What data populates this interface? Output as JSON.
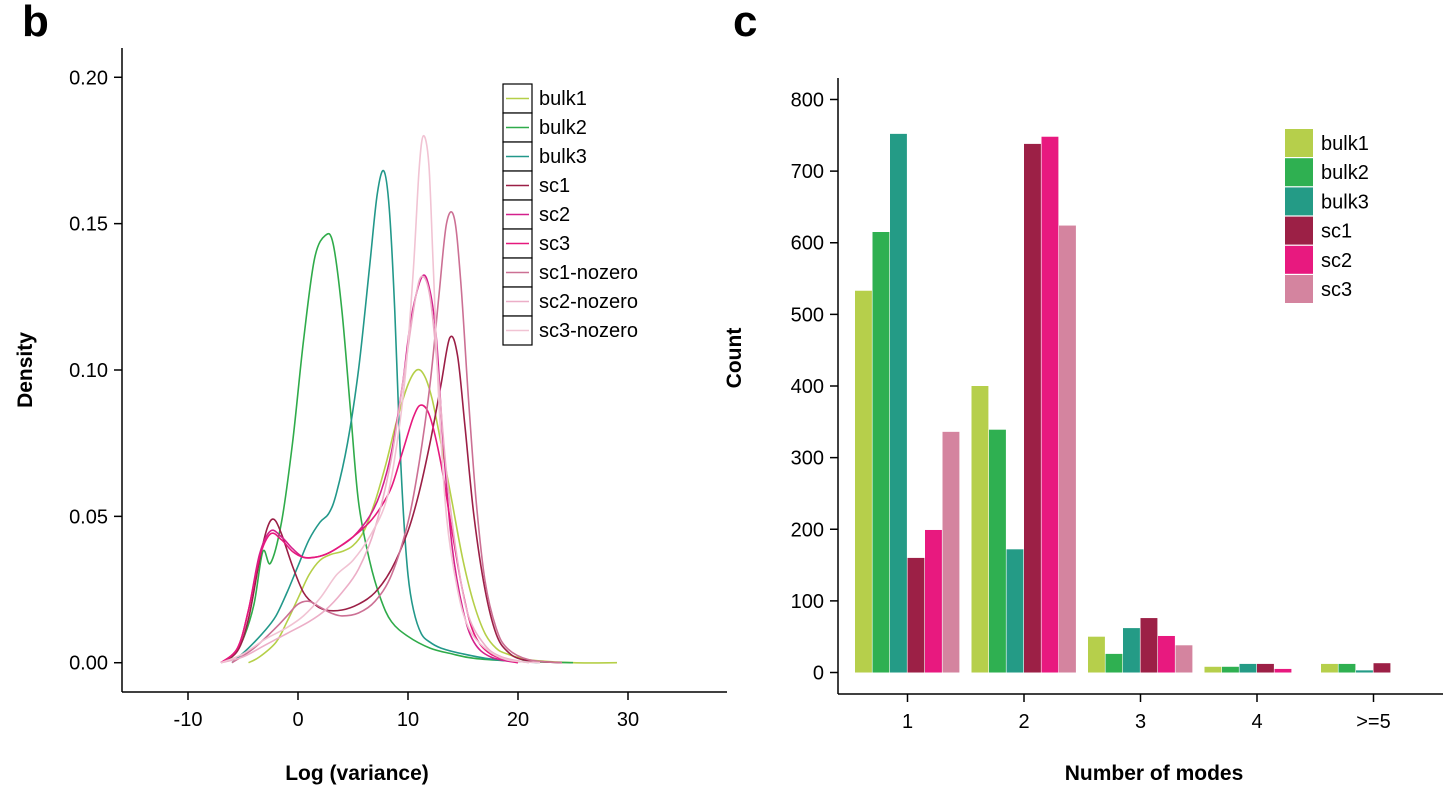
{
  "chart_data": [
    {
      "panel": "b",
      "type": "line",
      "xlabel": "Log (variance)",
      "ylabel": "Density",
      "xlim": [
        -16,
        39
      ],
      "ylim": [
        -0.01,
        0.21
      ],
      "xticks": [
        -10,
        0,
        10,
        20,
        30
      ],
      "yticks": [
        0.0,
        0.05,
        0.1,
        0.15,
        0.2
      ],
      "xtick_labels": [
        "-10",
        "0",
        "10",
        "20",
        "30"
      ],
      "ytick_labels": [
        "0.00",
        "0.05",
        "0.10",
        "0.15",
        "0.20"
      ],
      "grid": false,
      "legend_position": "top-right",
      "series": [
        {
          "name": "bulk1",
          "color": "#b5cf48",
          "points": [
            [
              -4.5,
              0
            ],
            [
              -3.5,
              0.002
            ],
            [
              -2,
              0.007
            ],
            [
              -1,
              0.014
            ],
            [
              0,
              0.022
            ],
            [
              1,
              0.03
            ],
            [
              2,
              0.035
            ],
            [
              3,
              0.037
            ],
            [
              4,
              0.038
            ],
            [
              5,
              0.04
            ],
            [
              6,
              0.045
            ],
            [
              7,
              0.055
            ],
            [
              8,
              0.068
            ],
            [
              9,
              0.083
            ],
            [
              10,
              0.095
            ],
            [
              10.8,
              0.1
            ],
            [
              11.5,
              0.098
            ],
            [
              12.2,
              0.09
            ],
            [
              13,
              0.075
            ],
            [
              14,
              0.055
            ],
            [
              15,
              0.035
            ],
            [
              16,
              0.02
            ],
            [
              17,
              0.01
            ],
            [
              18,
              0.005
            ],
            [
              19,
              0.003
            ],
            [
              21,
              0.001
            ],
            [
              25,
              0
            ],
            [
              29,
              0
            ]
          ]
        },
        {
          "name": "bulk2",
          "color": "#2fab4a",
          "points": [
            [
              -7,
              0
            ],
            [
              -6,
              0.002
            ],
            [
              -5,
              0.008
            ],
            [
              -4,
              0.02
            ],
            [
              -3.2,
              0.038
            ],
            [
              -2.5,
              0.034
            ],
            [
              -1.5,
              0.048
            ],
            [
              -0.5,
              0.075
            ],
            [
              0.5,
              0.11
            ],
            [
              1.5,
              0.138
            ],
            [
              2.5,
              0.146
            ],
            [
              3.2,
              0.143
            ],
            [
              4,
              0.12
            ],
            [
              4.8,
              0.085
            ],
            [
              5.5,
              0.055
            ],
            [
              6.5,
              0.035
            ],
            [
              7.5,
              0.022
            ],
            [
              8.5,
              0.014
            ],
            [
              10,
              0.009
            ],
            [
              12,
              0.005
            ],
            [
              14,
              0.003
            ],
            [
              16,
              0.0015
            ],
            [
              20,
              0.0005
            ],
            [
              25,
              0
            ]
          ]
        },
        {
          "name": "bulk3",
          "color": "#22988a",
          "points": [
            [
              -6,
              0
            ],
            [
              -4.5,
              0.005
            ],
            [
              -3,
              0.011
            ],
            [
              -2,
              0.016
            ],
            [
              -1,
              0.024
            ],
            [
              0,
              0.033
            ],
            [
              1,
              0.042
            ],
            [
              2,
              0.048
            ],
            [
              2.8,
              0.051
            ],
            [
              3.5,
              0.058
            ],
            [
              4.5,
              0.075
            ],
            [
              5.5,
              0.1
            ],
            [
              6.5,
              0.135
            ],
            [
              7.2,
              0.16
            ],
            [
              7.8,
              0.168
            ],
            [
              8.3,
              0.155
            ],
            [
              8.8,
              0.12
            ],
            [
              9.2,
              0.08
            ],
            [
              9.6,
              0.05
            ],
            [
              10,
              0.03
            ],
            [
              10.5,
              0.018
            ],
            [
              11.2,
              0.01
            ],
            [
              12,
              0.007
            ],
            [
              13,
              0.005
            ],
            [
              15,
              0.003
            ],
            [
              18,
              0.001
            ],
            [
              22,
              0
            ]
          ]
        },
        {
          "name": "sc1",
          "color": "#9b1f46",
          "points": [
            [
              -7,
              0
            ],
            [
              -5.5,
              0.004
            ],
            [
              -4.5,
              0.015
            ],
            [
              -3.5,
              0.035
            ],
            [
              -2.8,
              0.046
            ],
            [
              -2.2,
              0.049
            ],
            [
              -1.5,
              0.044
            ],
            [
              -0.5,
              0.033
            ],
            [
              0.5,
              0.024
            ],
            [
              1.5,
              0.02
            ],
            [
              2.5,
              0.018
            ],
            [
              4,
              0.018
            ],
            [
              5.5,
              0.02
            ],
            [
              7,
              0.024
            ],
            [
              8.5,
              0.032
            ],
            [
              10,
              0.045
            ],
            [
              11,
              0.058
            ],
            [
              12,
              0.075
            ],
            [
              13,
              0.095
            ],
            [
              13.8,
              0.111
            ],
            [
              14.5,
              0.105
            ],
            [
              15.2,
              0.08
            ],
            [
              16,
              0.05
            ],
            [
              17,
              0.025
            ],
            [
              18,
              0.01
            ],
            [
              19,
              0.004
            ],
            [
              20.5,
              0.001
            ],
            [
              24,
              0
            ]
          ]
        },
        {
          "name": "sc2",
          "color": "#d4208c",
          "points": [
            [
              -7,
              0
            ],
            [
              -5.5,
              0.005
            ],
            [
              -4.5,
              0.018
            ],
            [
              -3.5,
              0.037
            ],
            [
              -2.5,
              0.045
            ],
            [
              -1.5,
              0.043
            ],
            [
              -0.5,
              0.039
            ],
            [
              0.5,
              0.036
            ],
            [
              1.5,
              0.036
            ],
            [
              2.5,
              0.037
            ],
            [
              3.5,
              0.039
            ],
            [
              5,
              0.043
            ],
            [
              6.5,
              0.05
            ],
            [
              7.5,
              0.058
            ],
            [
              8.5,
              0.072
            ],
            [
              9.5,
              0.095
            ],
            [
              10.3,
              0.118
            ],
            [
              11.3,
              0.132
            ],
            [
              12,
              0.127
            ],
            [
              12.6,
              0.11
            ],
            [
              13.2,
              0.075
            ],
            [
              14,
              0.04
            ],
            [
              15,
              0.018
            ],
            [
              16,
              0.007
            ],
            [
              17.5,
              0.002
            ],
            [
              20,
              0
            ]
          ]
        },
        {
          "name": "sc3",
          "color": "#e6197d",
          "points": [
            [
              -7,
              0
            ],
            [
              -5.5,
              0.005
            ],
            [
              -4.5,
              0.018
            ],
            [
              -3.5,
              0.036
            ],
            [
              -2.5,
              0.044
            ],
            [
              -1.5,
              0.042
            ],
            [
              -0.5,
              0.038
            ],
            [
              0.5,
              0.036
            ],
            [
              1.5,
              0.036
            ],
            [
              2.5,
              0.037
            ],
            [
              3.5,
              0.039
            ],
            [
              5,
              0.043
            ],
            [
              6.5,
              0.048
            ],
            [
              7.5,
              0.053
            ],
            [
              8.5,
              0.06
            ],
            [
              9.5,
              0.072
            ],
            [
              10.5,
              0.084
            ],
            [
              11.2,
              0.088
            ],
            [
              12,
              0.084
            ],
            [
              13,
              0.068
            ],
            [
              14,
              0.045
            ],
            [
              15,
              0.024
            ],
            [
              16,
              0.01
            ],
            [
              17.5,
              0.003
            ],
            [
              20,
              0
            ]
          ]
        },
        {
          "name": "sc1-nozero",
          "color": "#cc7094",
          "points": [
            [
              -6,
              0
            ],
            [
              -4,
              0.005
            ],
            [
              -2,
              0.012
            ],
            [
              -1,
              0.016
            ],
            [
              0,
              0.02
            ],
            [
              1,
              0.021
            ],
            [
              2,
              0.019
            ],
            [
              3,
              0.017
            ],
            [
              4,
              0.016
            ],
            [
              5.5,
              0.017
            ],
            [
              7,
              0.021
            ],
            [
              8.5,
              0.03
            ],
            [
              10,
              0.048
            ],
            [
              11,
              0.068
            ],
            [
              12,
              0.095
            ],
            [
              12.8,
              0.125
            ],
            [
              13.5,
              0.15
            ],
            [
              14.2,
              0.152
            ],
            [
              14.8,
              0.13
            ],
            [
              15.5,
              0.09
            ],
            [
              16.2,
              0.055
            ],
            [
              17,
              0.028
            ],
            [
              18,
              0.012
            ],
            [
              19,
              0.005
            ],
            [
              21,
              0.001
            ],
            [
              24,
              0
            ]
          ]
        },
        {
          "name": "sc2-nozero",
          "color": "#ecaec7",
          "points": [
            [
              -7,
              0
            ],
            [
              -5,
              0.002
            ],
            [
              -3,
              0.006
            ],
            [
              -1,
              0.01
            ],
            [
              1,
              0.014
            ],
            [
              2.5,
              0.018
            ],
            [
              4,
              0.024
            ],
            [
              5.5,
              0.032
            ],
            [
              7,
              0.046
            ],
            [
              8.5,
              0.07
            ],
            [
              9.7,
              0.1
            ],
            [
              10.7,
              0.125
            ],
            [
              11.3,
              0.132
            ],
            [
              12,
              0.125
            ],
            [
              12.7,
              0.1
            ],
            [
              13.5,
              0.065
            ],
            [
              14.5,
              0.035
            ],
            [
              15.5,
              0.016
            ],
            [
              17,
              0.006
            ],
            [
              18.5,
              0.002
            ],
            [
              21,
              0
            ]
          ]
        },
        {
          "name": "sc3-nozero",
          "color": "#f1c3d3",
          "points": [
            [
              -7,
              0
            ],
            [
              -5,
              0.003
            ],
            [
              -3,
              0.008
            ],
            [
              -1,
              0.012
            ],
            [
              0.5,
              0.016
            ],
            [
              2,
              0.022
            ],
            [
              3.5,
              0.03
            ],
            [
              5,
              0.035
            ],
            [
              6.5,
              0.043
            ],
            [
              8,
              0.055
            ],
            [
              9,
              0.075
            ],
            [
              9.8,
              0.1
            ],
            [
              10.5,
              0.135
            ],
            [
              11,
              0.168
            ],
            [
              11.4,
              0.18
            ],
            [
              11.9,
              0.17
            ],
            [
              12.3,
              0.135
            ],
            [
              12.8,
              0.09
            ],
            [
              13.5,
              0.05
            ],
            [
              14.5,
              0.025
            ],
            [
              15.5,
              0.012
            ],
            [
              17,
              0.005
            ],
            [
              19,
              0.001
            ],
            [
              22,
              0
            ]
          ]
        }
      ]
    },
    {
      "panel": "c",
      "type": "bar",
      "xlabel": "Number of modes",
      "ylabel": "Count",
      "categories": [
        "1",
        "2",
        "3",
        "4",
        ">=5"
      ],
      "ylim": [
        -30,
        830
      ],
      "yticks": [
        0,
        100,
        200,
        300,
        400,
        500,
        600,
        700,
        800
      ],
      "grid": false,
      "legend_position": "top-right",
      "series": [
        {
          "name": "bulk1",
          "color": "#b6cf4b",
          "values": [
            533,
            400,
            50,
            8,
            12
          ]
        },
        {
          "name": "bulk2",
          "color": "#2fb051",
          "values": [
            615,
            339,
            26,
            8,
            12
          ]
        },
        {
          "name": "bulk3",
          "color": "#249b86",
          "values": [
            752,
            172,
            62,
            12,
            3
          ]
        },
        {
          "name": "sc1",
          "color": "#9c2046",
          "values": [
            160,
            738,
            76,
            12,
            13
          ]
        },
        {
          "name": "sc2",
          "color": "#e8197f",
          "values": [
            199,
            748,
            51,
            5,
            0
          ]
        },
        {
          "name": "sc3",
          "color": "#d4849f",
          "values": [
            336,
            624,
            38,
            0,
            0
          ]
        }
      ]
    }
  ],
  "panels": {
    "b": {
      "letter": "b"
    },
    "c": {
      "letter": "c"
    }
  }
}
